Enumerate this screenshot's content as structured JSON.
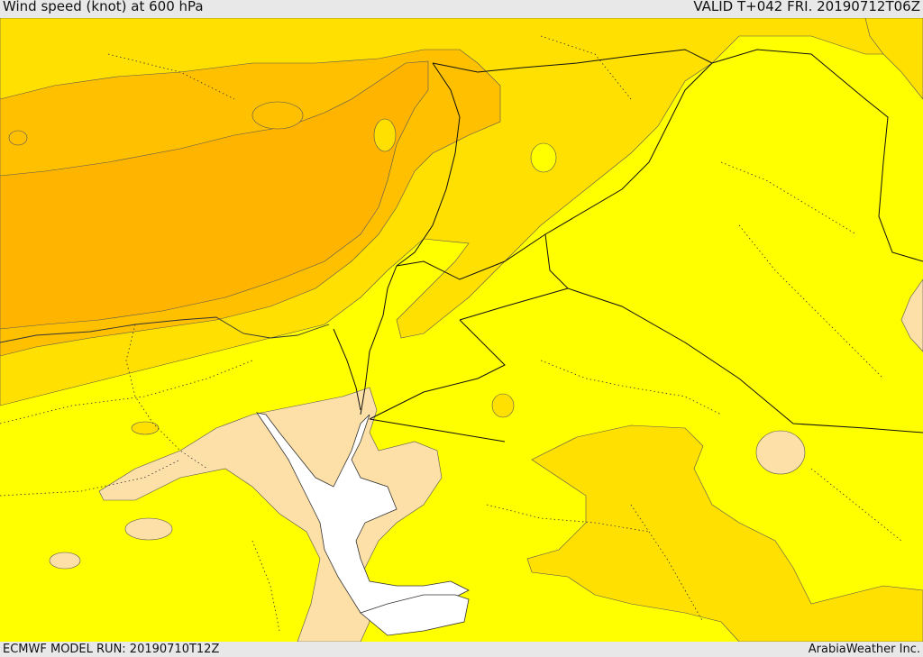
{
  "header": {
    "title": "Wind speed (knot) at 600 hPa",
    "valid_time": "VALID T+042 FRI. 20190712T06Z"
  },
  "footer": {
    "model_run": "ECMWF MODEL RUN: 20190710T12Z",
    "credit": "ArabiaWeather Inc."
  },
  "map": {
    "field": "wind speed",
    "level": "600 hPa",
    "colors": {
      "peach": "#fde0a8",
      "yellow": "#ffff00",
      "light_orange": "#ffe000",
      "orange": "#ffc000",
      "dark_orange": "#ffb400",
      "sea_white": "#ffffff",
      "border": "#000000"
    }
  }
}
